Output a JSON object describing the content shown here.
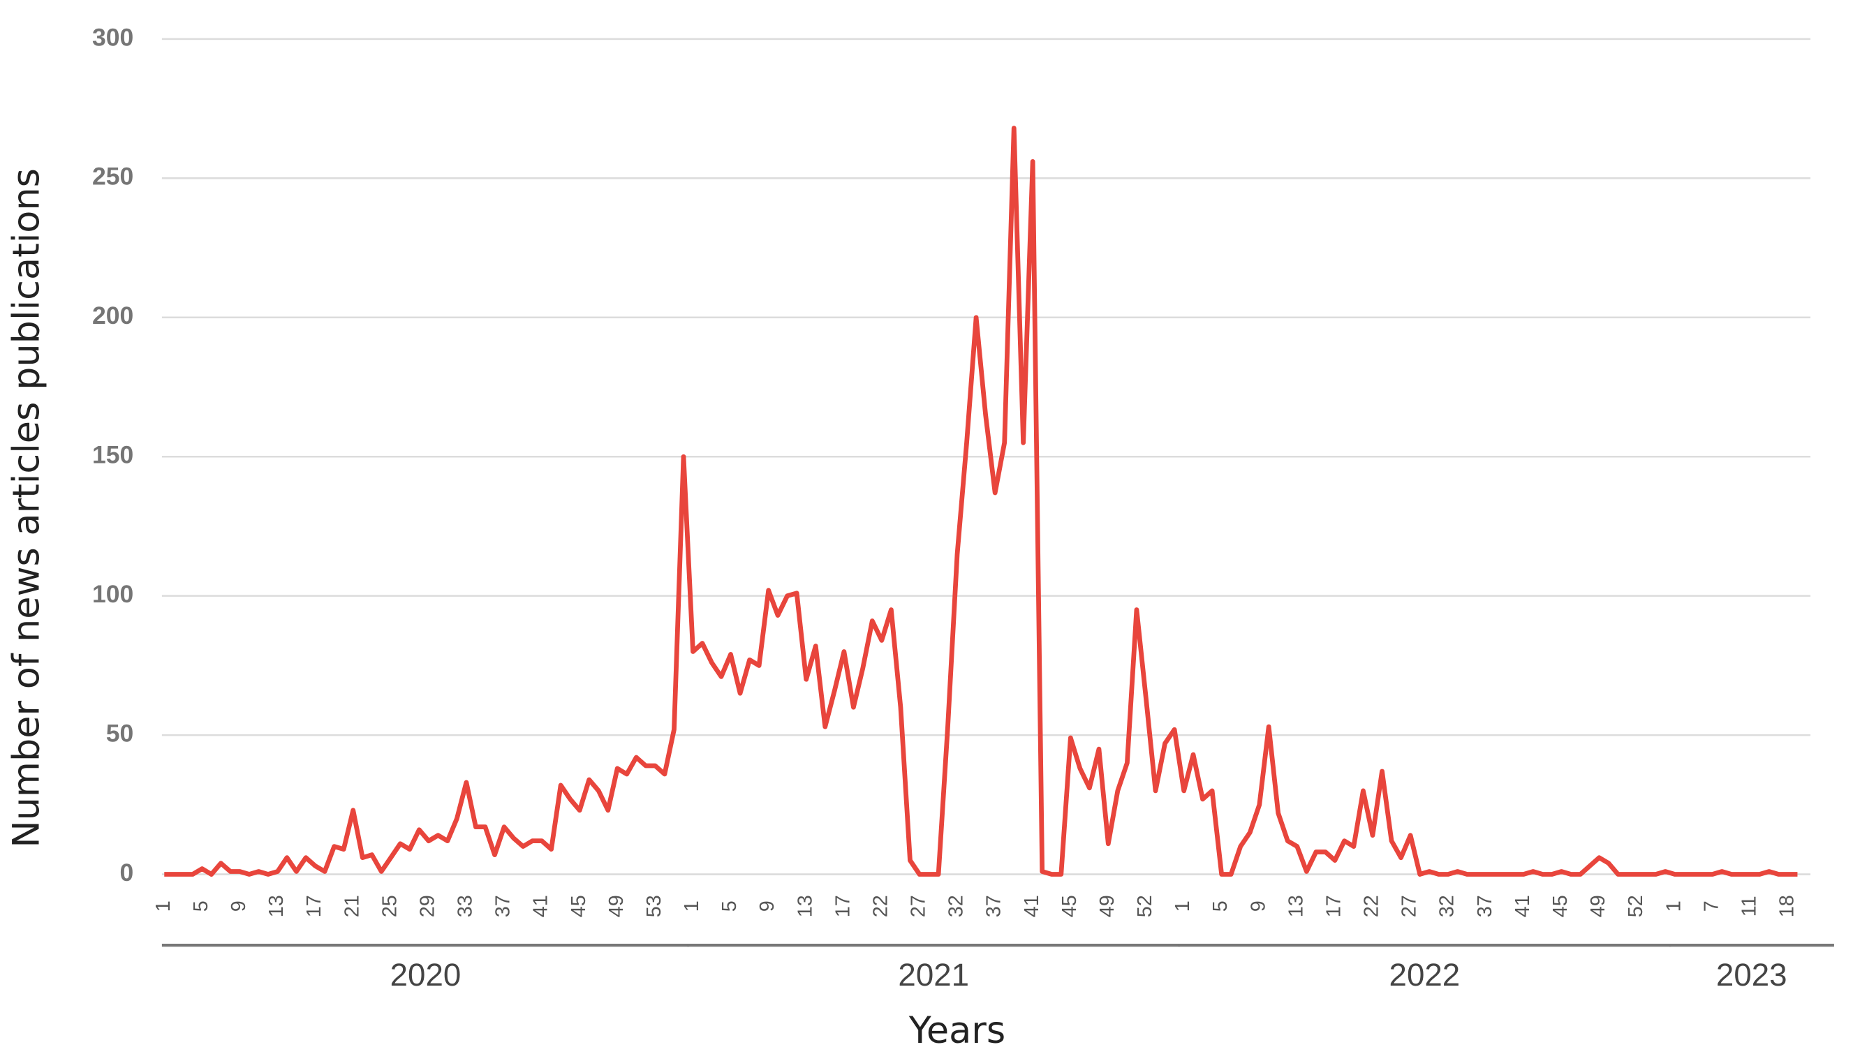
{
  "chart_data": {
    "type": "line",
    "x_label": "Years",
    "y_label": "Number of news articles publications",
    "color": "#e8453c",
    "ylim": [
      0,
      300
    ],
    "yticks": [
      0,
      50,
      100,
      150,
      200,
      250,
      300
    ],
    "grid": true,
    "groups": [
      {
        "name": "2020",
        "categories": [
          "1",
          null,
          null,
          null,
          "5",
          null,
          null,
          null,
          "9",
          null,
          null,
          null,
          "13",
          null,
          null,
          null,
          "17",
          null,
          null,
          null,
          "21",
          null,
          null,
          null,
          "25",
          null,
          null,
          null,
          "29",
          null,
          null,
          null,
          "33",
          null,
          null,
          null,
          "37",
          null,
          null,
          null,
          "41",
          null,
          null,
          null,
          "45",
          null,
          null,
          null,
          "49",
          null,
          null,
          null,
          "53",
          null,
          null,
          null
        ],
        "values": [
          0,
          0,
          0,
          0,
          2,
          0,
          4,
          1,
          1,
          0,
          1,
          0,
          1,
          6,
          1,
          6,
          3,
          1,
          10,
          9,
          23,
          6,
          7,
          1,
          6,
          11,
          9,
          16,
          12,
          14,
          12,
          20,
          33,
          17,
          17,
          7,
          17,
          13,
          10,
          12,
          12,
          9,
          32,
          27,
          23,
          34,
          30,
          23,
          38,
          36,
          42,
          39,
          39,
          36,
          52,
          150
        ]
      },
      {
        "name": "2021",
        "categories": [
          "1",
          null,
          null,
          null,
          "5",
          null,
          null,
          null,
          "9",
          null,
          null,
          null,
          "13",
          null,
          null,
          null,
          "17",
          null,
          null,
          null,
          "22",
          null,
          null,
          null,
          "27",
          null,
          null,
          null,
          "32",
          null,
          null,
          null,
          "37",
          null,
          null,
          null,
          "41",
          null,
          null,
          null,
          "45",
          null,
          null,
          null,
          "49",
          null,
          null,
          null,
          "52",
          null,
          null,
          null
        ],
        "values": [
          80,
          83,
          76,
          71,
          79,
          65,
          77,
          75,
          102,
          93,
          100,
          101,
          70,
          82,
          53,
          66,
          80,
          60,
          74,
          91,
          84,
          95,
          60,
          5,
          0,
          0,
          0,
          53,
          115,
          155,
          200,
          165,
          137,
          155,
          268,
          155,
          256,
          1,
          0,
          0,
          49,
          38,
          31,
          45,
          11,
          30,
          40,
          95,
          63,
          30,
          47,
          52
        ]
      },
      {
        "name": "2022",
        "categories": [
          "1",
          null,
          null,
          null,
          "5",
          null,
          null,
          null,
          "9",
          null,
          null,
          null,
          "13",
          null,
          null,
          null,
          "17",
          null,
          null,
          null,
          "22",
          null,
          null,
          null,
          "27",
          null,
          null,
          null,
          "32",
          null,
          null,
          null,
          "37",
          null,
          null,
          null,
          "41",
          null,
          null,
          null,
          "45",
          null,
          null,
          null,
          "49",
          null,
          null,
          null,
          "52",
          null,
          null,
          null
        ],
        "values": [
          30,
          43,
          27,
          30,
          0,
          0,
          10,
          15,
          25,
          53,
          22,
          12,
          10,
          1,
          8,
          8,
          5,
          12,
          10,
          30,
          14,
          37,
          12,
          6,
          14,
          0,
          1,
          0,
          0,
          1,
          0,
          0,
          0,
          0,
          0,
          0,
          0,
          1,
          0,
          0,
          1,
          0,
          0,
          3,
          6,
          4,
          0,
          0,
          0,
          0,
          0,
          1
        ]
      },
      {
        "name": "2023",
        "categories": [
          "1",
          null,
          null,
          null,
          "7",
          null,
          null,
          null,
          "11",
          null,
          null,
          null,
          "18",
          null
        ],
        "values": [
          0,
          0,
          0,
          0,
          0,
          1,
          0,
          0,
          0,
          0,
          1,
          0,
          0,
          0
        ]
      }
    ]
  }
}
